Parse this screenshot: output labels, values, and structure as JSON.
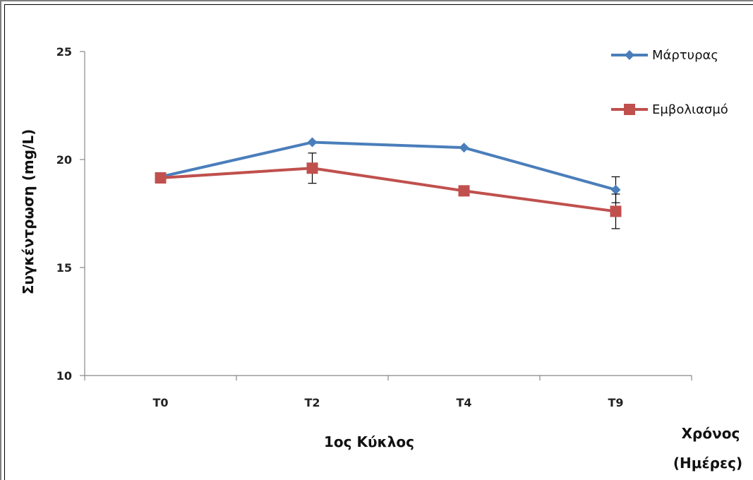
{
  "chart_data": {
    "type": "line",
    "categories": [
      "T0",
      "T2",
      "T4",
      "T9"
    ],
    "series": [
      {
        "name": "Μάρτυρας",
        "values": [
          19.2,
          20.8,
          20.55,
          18.6
        ],
        "color": "#4a7ebb",
        "marker": "diamond",
        "error": [
          null,
          null,
          null,
          0.6
        ]
      },
      {
        "name": "Εμβολιασμό",
        "values": [
          19.15,
          19.6,
          18.55,
          17.6
        ],
        "color": "#c0504d",
        "marker": "square",
        "error": [
          null,
          0.7,
          null,
          0.8
        ]
      }
    ],
    "ylim": [
      10,
      25
    ],
    "yticks": [
      10,
      15,
      20,
      25
    ],
    "ylabel": "Συγκέντρωση (mg/L)",
    "xlabel": "1ος Κύκλος",
    "xlabel_right_line1": "Χρόνος",
    "xlabel_right_line2": "(Ημέρες)",
    "legend_position": "top-right",
    "grid": false
  }
}
